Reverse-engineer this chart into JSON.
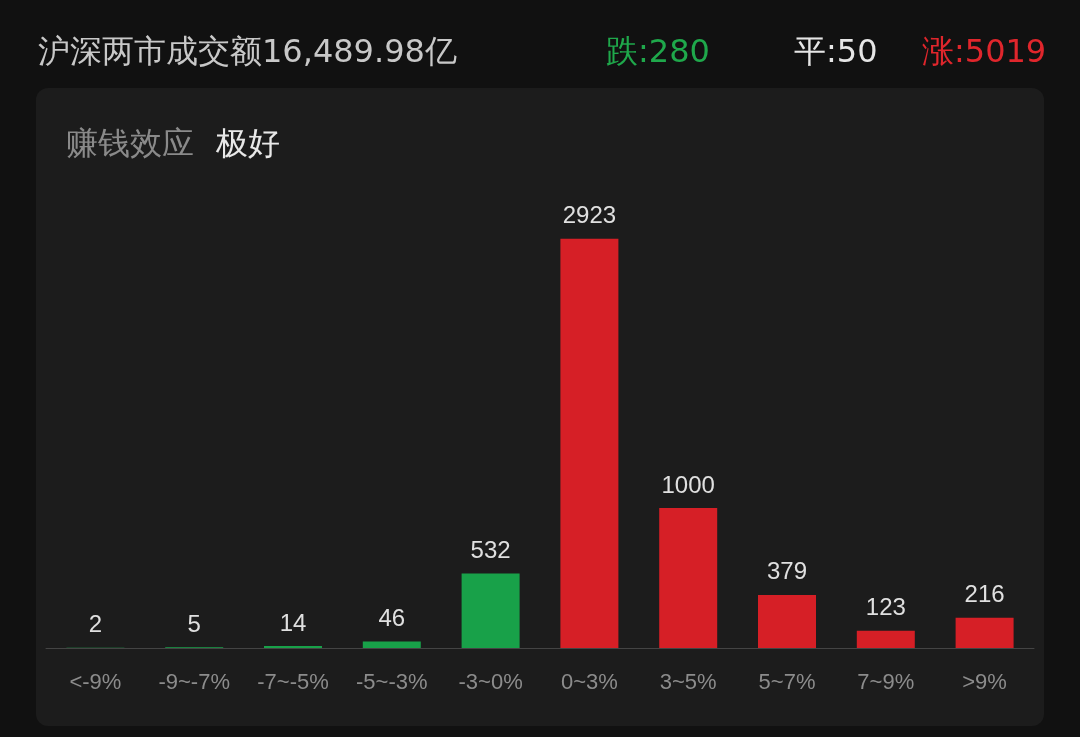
{
  "chart_data": {
    "type": "bar",
    "title": "沪深两市成交额16,489.98亿",
    "subtitle": "赚钱效应",
    "annotations": [
      "极好",
      "跌:280",
      "平:50",
      "涨:5019"
    ],
    "categories": [
      "<-9%",
      "-9~-7%",
      "-7~-5%",
      "-5~-3%",
      "-3~0%",
      "0~3%",
      "3~5%",
      "5~7%",
      "7~9%",
      ">9%"
    ],
    "values": [
      2,
      5,
      14,
      46,
      532,
      2923,
      1000,
      379,
      123,
      216
    ],
    "colors": [
      "#18a149",
      "#18a149",
      "#18a149",
      "#18a149",
      "#18a149",
      "#d61f26",
      "#d61f26",
      "#d61f26",
      "#d61f26",
      "#d61f26"
    ],
    "data_labels": true
  }
}
